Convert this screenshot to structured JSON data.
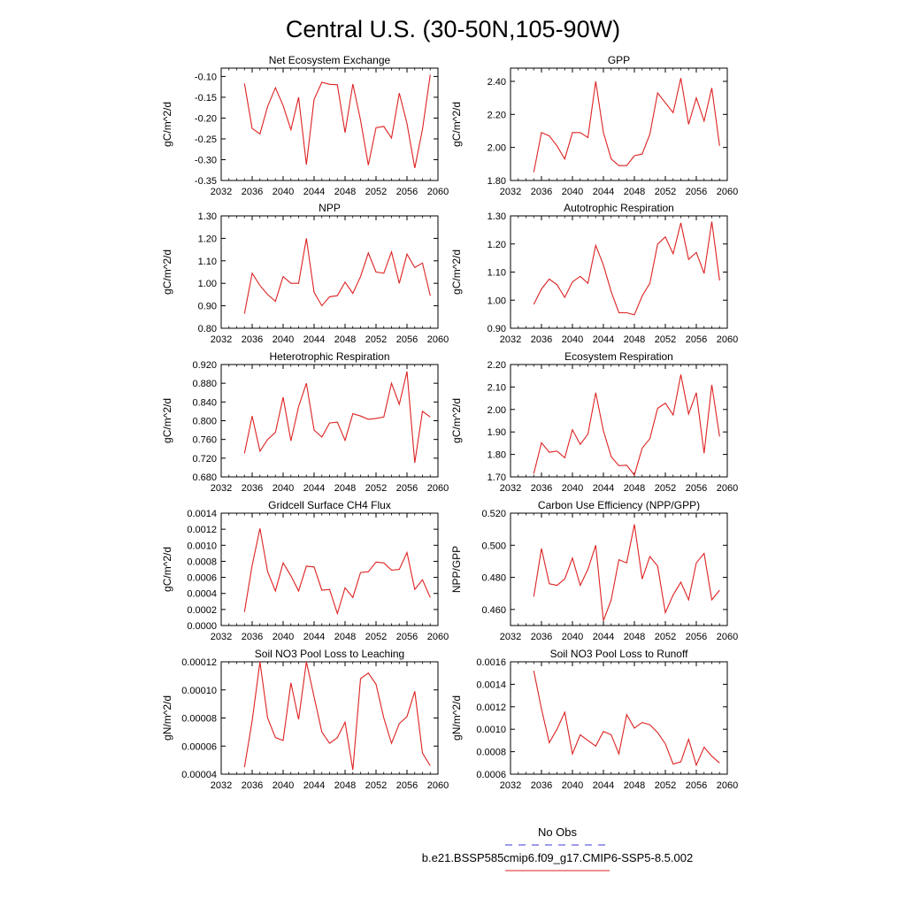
{
  "figure": {
    "title": "Central U.S. (30-50N,105-90W)",
    "legend": {
      "placement": "bottom-center",
      "entries": [
        {
          "label": "No Obs",
          "color": "#3b3bd6",
          "style": "dashed"
        },
        {
          "label": "b.e21.BSSP585cmip6.f09_g17.CMIP6-SSP5-8.5.002",
          "color": "#dd2222",
          "style": "solid"
        }
      ]
    }
  },
  "chart_data": [
    {
      "type": "line",
      "title": "Net Ecosystem Exchange",
      "ylabel": "gC/m^2/d",
      "xlim": [
        2032,
        2060
      ],
      "ylim": [
        -0.35,
        -0.08
      ],
      "xticks": [
        2032,
        2036,
        2040,
        2044,
        2048,
        2052,
        2056,
        2060
      ],
      "yticks": [
        -0.35,
        -0.3,
        -0.25,
        -0.2,
        -0.15,
        -0.1
      ],
      "ytick_labels": [
        "-0.35",
        "-0.30",
        "-0.25",
        "-0.20",
        "-0.15",
        "-0.10"
      ],
      "grid": false,
      "series": [
        {
          "color": "#dd2222",
          "x": [
            2035,
            2036,
            2037,
            2038,
            2039,
            2040,
            2041,
            2042,
            2043,
            2044,
            2045,
            2046,
            2047,
            2048,
            2049,
            2050,
            2051,
            2052,
            2053,
            2054,
            2055,
            2056,
            2057,
            2058,
            2059
          ],
          "y": [
            -0.117,
            -0.225,
            -0.238,
            -0.172,
            -0.127,
            -0.17,
            -0.228,
            -0.15,
            -0.312,
            -0.155,
            -0.114,
            -0.119,
            -0.12,
            -0.235,
            -0.118,
            -0.205,
            -0.313,
            -0.223,
            -0.22,
            -0.248,
            -0.14,
            -0.213,
            -0.32,
            -0.227,
            -0.096
          ]
        }
      ]
    },
    {
      "type": "line",
      "title": "GPP",
      "ylabel": "gC/m^2/d",
      "xlim": [
        2032,
        2060
      ],
      "ylim": [
        1.8,
        2.48
      ],
      "xticks": [
        2032,
        2036,
        2040,
        2044,
        2048,
        2052,
        2056,
        2060
      ],
      "yticks": [
        1.8,
        2.0,
        2.2,
        2.4
      ],
      "ytick_labels": [
        "1.80",
        "2.00",
        "2.20",
        "2.40"
      ],
      "grid": false,
      "series": [
        {
          "color": "#dd2222",
          "x": [
            2035,
            2036,
            2037,
            2038,
            2039,
            2040,
            2041,
            2042,
            2043,
            2044,
            2045,
            2046,
            2047,
            2048,
            2049,
            2050,
            2051,
            2052,
            2053,
            2054,
            2055,
            2056,
            2057,
            2058,
            2059
          ],
          "y": [
            1.85,
            2.09,
            2.07,
            2.01,
            1.93,
            2.09,
            2.09,
            2.06,
            2.4,
            2.09,
            1.93,
            1.89,
            1.89,
            1.95,
            1.96,
            2.08,
            2.33,
            2.27,
            2.21,
            2.42,
            2.14,
            2.3,
            2.16,
            2.36,
            2.01
          ]
        }
      ]
    },
    {
      "type": "line",
      "title": "NPP",
      "ylabel": "gC/m^2/d",
      "xlim": [
        2032,
        2060
      ],
      "ylim": [
        0.8,
        1.3
      ],
      "xticks": [
        2032,
        2036,
        2040,
        2044,
        2048,
        2052,
        2056,
        2060
      ],
      "yticks": [
        0.8,
        0.9,
        1.0,
        1.1,
        1.2,
        1.3
      ],
      "ytick_labels": [
        "0.80",
        "0.90",
        "1.00",
        "1.10",
        "1.20",
        "1.30"
      ],
      "grid": false,
      "series": [
        {
          "color": "#dd2222",
          "x": [
            2035,
            2036,
            2037,
            2038,
            2039,
            2040,
            2041,
            2042,
            2043,
            2044,
            2045,
            2046,
            2047,
            2048,
            2049,
            2050,
            2051,
            2052,
            2053,
            2054,
            2055,
            2056,
            2057,
            2058,
            2059
          ],
          "y": [
            0.865,
            1.045,
            0.99,
            0.95,
            0.92,
            1.03,
            1.0,
            1.0,
            1.2,
            0.96,
            0.9,
            0.94,
            0.945,
            1.005,
            0.955,
            1.03,
            1.135,
            1.05,
            1.045,
            1.14,
            1.0,
            1.13,
            1.07,
            1.09,
            0.945
          ]
        }
      ]
    },
    {
      "type": "line",
      "title": "Autotrophic Respiration",
      "ylabel": "gC/m^2/d",
      "xlim": [
        2032,
        2060
      ],
      "ylim": [
        0.9,
        1.3
      ],
      "xticks": [
        2032,
        2036,
        2040,
        2044,
        2048,
        2052,
        2056,
        2060
      ],
      "yticks": [
        0.9,
        1.0,
        1.1,
        1.2,
        1.3
      ],
      "ytick_labels": [
        "0.90",
        "1.00",
        "1.10",
        "1.20",
        "1.30"
      ],
      "grid": false,
      "series": [
        {
          "color": "#dd2222",
          "x": [
            2035,
            2036,
            2037,
            2038,
            2039,
            2040,
            2041,
            2042,
            2043,
            2044,
            2045,
            2046,
            2047,
            2048,
            2049,
            2050,
            2051,
            2052,
            2053,
            2054,
            2055,
            2056,
            2057,
            2058,
            2059
          ],
          "y": [
            0.985,
            1.04,
            1.075,
            1.055,
            1.01,
            1.065,
            1.085,
            1.06,
            1.195,
            1.125,
            1.03,
            0.955,
            0.955,
            0.948,
            1.015,
            1.06,
            1.2,
            1.225,
            1.165,
            1.275,
            1.145,
            1.17,
            1.095,
            1.28,
            1.07
          ]
        }
      ]
    },
    {
      "type": "line",
      "title": "Heterotrophic Respiration",
      "ylabel": "gC/m^2/d",
      "xlim": [
        2032,
        2060
      ],
      "ylim": [
        0.68,
        0.92
      ],
      "xticks": [
        2032,
        2036,
        2040,
        2044,
        2048,
        2052,
        2056,
        2060
      ],
      "yticks": [
        0.68,
        0.72,
        0.76,
        0.8,
        0.84,
        0.88,
        0.92
      ],
      "ytick_labels": [
        "0.680",
        "0.720",
        "0.760",
        "0.800",
        "0.840",
        "0.880",
        "0.920"
      ],
      "grid": false,
      "series": [
        {
          "color": "#dd2222",
          "x": [
            2035,
            2036,
            2037,
            2038,
            2039,
            2040,
            2041,
            2042,
            2043,
            2044,
            2045,
            2046,
            2047,
            2048,
            2049,
            2050,
            2051,
            2052,
            2053,
            2054,
            2055,
            2056,
            2057,
            2058,
            2059
          ],
          "y": [
            0.73,
            0.81,
            0.735,
            0.76,
            0.775,
            0.85,
            0.757,
            0.83,
            0.88,
            0.78,
            0.765,
            0.795,
            0.797,
            0.758,
            0.815,
            0.81,
            0.803,
            0.805,
            0.808,
            0.88,
            0.835,
            0.905,
            0.71,
            0.82,
            0.808
          ]
        }
      ]
    },
    {
      "type": "line",
      "title": "Ecosystem Respiration",
      "ylabel": "gC/m^2/d",
      "xlim": [
        2032,
        2060
      ],
      "ylim": [
        1.7,
        2.2
      ],
      "xticks": [
        2032,
        2036,
        2040,
        2044,
        2048,
        2052,
        2056,
        2060
      ],
      "yticks": [
        1.7,
        1.8,
        1.9,
        2.0,
        2.1,
        2.2
      ],
      "ytick_labels": [
        "1.70",
        "1.80",
        "1.90",
        "2.00",
        "2.10",
        "2.20"
      ],
      "grid": false,
      "series": [
        {
          "color": "#dd2222",
          "x": [
            2035,
            2036,
            2037,
            2038,
            2039,
            2040,
            2041,
            2042,
            2043,
            2044,
            2045,
            2046,
            2047,
            2048,
            2049,
            2050,
            2051,
            2052,
            2053,
            2054,
            2055,
            2056,
            2057,
            2058,
            2059
          ],
          "y": [
            1.715,
            1.852,
            1.81,
            1.815,
            1.785,
            1.91,
            1.845,
            1.89,
            2.075,
            1.905,
            1.79,
            1.75,
            1.752,
            1.708,
            1.828,
            1.87,
            2.005,
            2.028,
            1.975,
            2.155,
            1.98,
            2.075,
            1.805,
            2.11,
            1.88
          ]
        }
      ]
    },
    {
      "type": "line",
      "title": "Gridcell Surface CH4 Flux",
      "ylabel": "gC/m^2/d",
      "xlim": [
        2032,
        2060
      ],
      "ylim": [
        0.0,
        0.0014
      ],
      "xticks": [
        2032,
        2036,
        2040,
        2044,
        2048,
        2052,
        2056,
        2060
      ],
      "yticks": [
        0.0,
        0.0002,
        0.0004,
        0.0006,
        0.0008,
        0.001,
        0.0012,
        0.0014
      ],
      "ytick_labels": [
        "0.0000",
        "0.0002",
        "0.0004",
        "0.0006",
        "0.0008",
        "0.0010",
        "0.0012",
        "0.0014"
      ],
      "grid": false,
      "series": [
        {
          "color": "#dd2222",
          "x": [
            2035,
            2036,
            2037,
            2038,
            2039,
            2040,
            2041,
            2042,
            2043,
            2044,
            2045,
            2046,
            2047,
            2048,
            2049,
            2050,
            2051,
            2052,
            2053,
            2054,
            2055,
            2056,
            2057,
            2058,
            2059
          ],
          "y": [
            0.00017,
            0.00075,
            0.00121,
            0.00067,
            0.00043,
            0.00078,
            0.00062,
            0.00043,
            0.00074,
            0.00073,
            0.00044,
            0.00045,
            0.00015,
            0.00047,
            0.00035,
            0.00066,
            0.00067,
            0.00079,
            0.00078,
            0.00069,
            0.0007,
            0.00091,
            0.00045,
            0.00057,
            0.00035
          ]
        }
      ]
    },
    {
      "type": "line",
      "title": "Carbon Use Efficiency (NPP/GPP)",
      "ylabel": "NPP/GPP",
      "xlim": [
        2032,
        2060
      ],
      "ylim": [
        0.45,
        0.52
      ],
      "xticks": [
        2032,
        2036,
        2040,
        2044,
        2048,
        2052,
        2056,
        2060
      ],
      "yticks": [
        0.46,
        0.48,
        0.5,
        0.52
      ],
      "ytick_labels": [
        "0.460",
        "0.480",
        "0.500",
        "0.520"
      ],
      "grid": false,
      "series": [
        {
          "color": "#dd2222",
          "x": [
            2035,
            2036,
            2037,
            2038,
            2039,
            2040,
            2041,
            2042,
            2043,
            2044,
            2045,
            2046,
            2047,
            2048,
            2049,
            2050,
            2051,
            2052,
            2053,
            2054,
            2055,
            2056,
            2057,
            2058,
            2059
          ],
          "y": [
            0.468,
            0.498,
            0.476,
            0.475,
            0.479,
            0.492,
            0.475,
            0.485,
            0.5,
            0.453,
            0.466,
            0.491,
            0.489,
            0.513,
            0.479,
            0.493,
            0.487,
            0.458,
            0.469,
            0.477,
            0.466,
            0.489,
            0.495,
            0.466,
            0.472
          ]
        }
      ]
    },
    {
      "type": "line",
      "title": "Soil NO3 Pool Loss to Leaching",
      "ylabel": "gN/m^2/d",
      "xlim": [
        2032,
        2060
      ],
      "ylim": [
        4e-05,
        0.00012
      ],
      "xticks": [
        2032,
        2036,
        2040,
        2044,
        2048,
        2052,
        2056,
        2060
      ],
      "yticks": [
        4e-05,
        6e-05,
        8e-05,
        0.0001,
        0.00012
      ],
      "ytick_labels": [
        "0.00004",
        "0.00006",
        "0.00008",
        "0.00010",
        "0.00012"
      ],
      "grid": false,
      "series": [
        {
          "color": "#dd2222",
          "x": [
            2035,
            2036,
            2037,
            2038,
            2039,
            2040,
            2041,
            2042,
            2043,
            2044,
            2045,
            2046,
            2047,
            2048,
            2049,
            2050,
            2051,
            2052,
            2053,
            2054,
            2055,
            2056,
            2057,
            2058,
            2059
          ],
          "y": [
            4.5e-05,
            7.8e-05,
            0.00012,
            8e-05,
            6.6e-05,
            6.4e-05,
            0.000105,
            7.9e-05,
            0.00012,
            9.5e-05,
            7e-05,
            6.2e-05,
            6.6e-05,
            7.7e-05,
            4.3e-05,
            0.000108,
            0.000112,
            0.000104,
            8e-05,
            6.2e-05,
            7.6e-05,
            8.1e-05,
            9.9e-05,
            5.5e-05,
            4.6e-05
          ]
        }
      ]
    },
    {
      "type": "line",
      "title": "Soil NO3 Pool Loss to Runoff",
      "ylabel": "gN/m^2/d",
      "xlim": [
        2032,
        2060
      ],
      "ylim": [
        0.0006,
        0.0016
      ],
      "xticks": [
        2032,
        2036,
        2040,
        2044,
        2048,
        2052,
        2056,
        2060
      ],
      "yticks": [
        0.0006,
        0.0008,
        0.001,
        0.0012,
        0.0014,
        0.0016
      ],
      "ytick_labels": [
        "0.0006",
        "0.0008",
        "0.0010",
        "0.0012",
        "0.0014",
        "0.0016"
      ],
      "grid": false,
      "series": [
        {
          "color": "#dd2222",
          "x": [
            2035,
            2036,
            2037,
            2038,
            2039,
            2040,
            2041,
            2042,
            2043,
            2044,
            2045,
            2046,
            2047,
            2048,
            2049,
            2050,
            2051,
            2052,
            2053,
            2054,
            2055,
            2056,
            2057,
            2058,
            2059
          ],
          "y": [
            0.00152,
            0.00118,
            0.00088,
            0.001,
            0.00115,
            0.00078,
            0.00095,
            0.0009,
            0.00085,
            0.00098,
            0.00095,
            0.00078,
            0.00113,
            0.00101,
            0.00106,
            0.00104,
            0.00097,
            0.00087,
            0.00069,
            0.00071,
            0.00091,
            0.00068,
            0.00084,
            0.00076,
            0.0007
          ]
        }
      ]
    }
  ]
}
